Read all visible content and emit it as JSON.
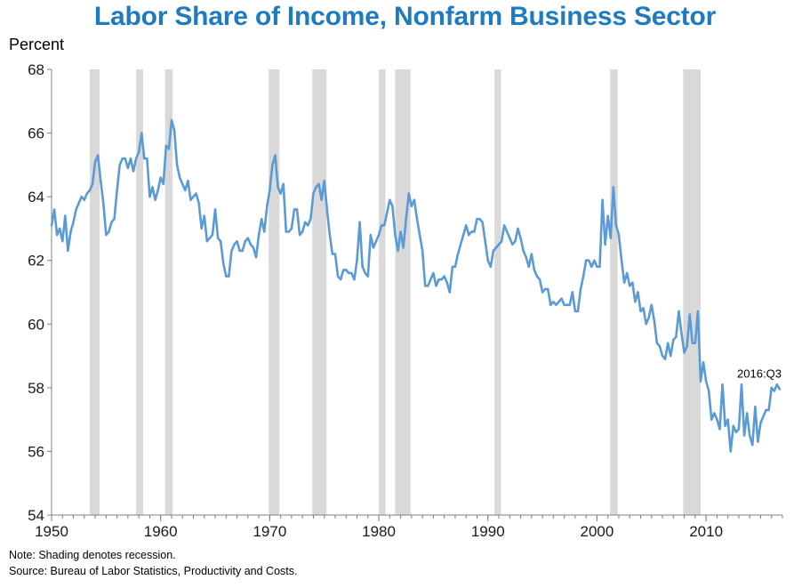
{
  "chart_data": {
    "type": "line",
    "title": "Labor Share of Income, Nonfarm Business Sector",
    "ylabel": "Percent",
    "xlim": [
      1950,
      2017
    ],
    "ylim": [
      54,
      68
    ],
    "yticks": [
      54,
      56,
      58,
      60,
      62,
      64,
      66,
      68
    ],
    "xticks": [
      1950,
      1960,
      1970,
      1980,
      1990,
      2000,
      2010
    ],
    "grid": false,
    "series": [
      {
        "color": "#5b9bd5",
        "end_label": "2016:Q3",
        "points": [
          [
            1950.0,
            63.1
          ],
          [
            1950.25,
            63.6
          ],
          [
            1950.5,
            62.8
          ],
          [
            1950.75,
            63.0
          ],
          [
            1951.0,
            62.6
          ],
          [
            1951.25,
            63.4
          ],
          [
            1951.5,
            62.3
          ],
          [
            1951.75,
            62.9
          ],
          [
            1952.0,
            63.2
          ],
          [
            1952.25,
            63.6
          ],
          [
            1952.5,
            63.8
          ],
          [
            1952.75,
            64.0
          ],
          [
            1953.0,
            63.9
          ],
          [
            1953.25,
            64.1
          ],
          [
            1953.5,
            64.2
          ],
          [
            1953.75,
            64.4
          ],
          [
            1954.0,
            65.1
          ],
          [
            1954.25,
            65.3
          ],
          [
            1954.5,
            64.5
          ],
          [
            1954.75,
            63.8
          ],
          [
            1955.0,
            62.8
          ],
          [
            1955.25,
            62.9
          ],
          [
            1955.5,
            63.2
          ],
          [
            1955.75,
            63.3
          ],
          [
            1956.0,
            64.2
          ],
          [
            1956.25,
            65.0
          ],
          [
            1956.5,
            65.2
          ],
          [
            1956.75,
            65.2
          ],
          [
            1957.0,
            64.9
          ],
          [
            1957.25,
            65.2
          ],
          [
            1957.5,
            64.8
          ],
          [
            1957.75,
            65.2
          ],
          [
            1958.0,
            65.4
          ],
          [
            1958.25,
            66.0
          ],
          [
            1958.5,
            65.2
          ],
          [
            1958.75,
            65.2
          ],
          [
            1959.0,
            64.0
          ],
          [
            1959.25,
            64.3
          ],
          [
            1959.5,
            63.9
          ],
          [
            1959.75,
            64.2
          ],
          [
            1960.0,
            64.6
          ],
          [
            1960.25,
            64.4
          ],
          [
            1960.5,
            65.6
          ],
          [
            1960.75,
            65.5
          ],
          [
            1961.0,
            66.4
          ],
          [
            1961.25,
            66.1
          ],
          [
            1961.5,
            65.0
          ],
          [
            1961.75,
            64.6
          ],
          [
            1962.0,
            64.4
          ],
          [
            1962.25,
            64.2
          ],
          [
            1962.5,
            64.5
          ],
          [
            1962.75,
            63.9
          ],
          [
            1963.0,
            64.0
          ],
          [
            1963.25,
            64.1
          ],
          [
            1963.5,
            63.8
          ],
          [
            1963.75,
            63.0
          ],
          [
            1964.0,
            63.4
          ],
          [
            1964.25,
            62.6
          ],
          [
            1964.5,
            62.7
          ],
          [
            1964.75,
            62.8
          ],
          [
            1965.0,
            63.6
          ],
          [
            1965.25,
            62.7
          ],
          [
            1965.5,
            62.6
          ],
          [
            1965.75,
            61.9
          ],
          [
            1966.0,
            61.5
          ],
          [
            1966.25,
            61.5
          ],
          [
            1966.5,
            62.3
          ],
          [
            1966.75,
            62.5
          ],
          [
            1967.0,
            62.6
          ],
          [
            1967.25,
            62.3
          ],
          [
            1967.5,
            62.3
          ],
          [
            1967.75,
            62.6
          ],
          [
            1968.0,
            62.7
          ],
          [
            1968.25,
            62.5
          ],
          [
            1968.5,
            62.4
          ],
          [
            1968.75,
            62.1
          ],
          [
            1969.0,
            62.8
          ],
          [
            1969.25,
            63.3
          ],
          [
            1969.5,
            62.9
          ],
          [
            1969.75,
            63.7
          ],
          [
            1970.0,
            64.2
          ],
          [
            1970.25,
            65.0
          ],
          [
            1970.5,
            65.3
          ],
          [
            1970.75,
            64.3
          ],
          [
            1971.0,
            64.1
          ],
          [
            1971.25,
            64.4
          ],
          [
            1971.5,
            62.9
          ],
          [
            1971.75,
            62.9
          ],
          [
            1972.0,
            63.0
          ],
          [
            1972.25,
            63.6
          ],
          [
            1972.5,
            63.6
          ],
          [
            1972.75,
            62.8
          ],
          [
            1973.0,
            62.9
          ],
          [
            1973.25,
            63.2
          ],
          [
            1973.5,
            63.1
          ],
          [
            1973.75,
            63.3
          ],
          [
            1974.0,
            64.1
          ],
          [
            1974.25,
            64.3
          ],
          [
            1974.5,
            64.4
          ],
          [
            1974.75,
            63.9
          ],
          [
            1975.0,
            64.5
          ],
          [
            1975.25,
            63.6
          ],
          [
            1975.5,
            62.8
          ],
          [
            1975.75,
            62.2
          ],
          [
            1976.0,
            62.2
          ],
          [
            1976.25,
            61.5
          ],
          [
            1976.5,
            61.4
          ],
          [
            1976.75,
            61.7
          ],
          [
            1977.0,
            61.7
          ],
          [
            1977.25,
            61.6
          ],
          [
            1977.5,
            61.6
          ],
          [
            1977.75,
            61.4
          ],
          [
            1978.0,
            62.0
          ],
          [
            1978.25,
            63.2
          ],
          [
            1978.5,
            61.8
          ],
          [
            1978.75,
            61.6
          ],
          [
            1979.0,
            61.5
          ],
          [
            1979.25,
            62.8
          ],
          [
            1979.5,
            62.4
          ],
          [
            1979.75,
            62.6
          ],
          [
            1980.0,
            62.8
          ],
          [
            1980.25,
            63.1
          ],
          [
            1980.5,
            63.1
          ],
          [
            1980.75,
            63.5
          ],
          [
            1981.0,
            63.9
          ],
          [
            1981.25,
            63.7
          ],
          [
            1981.5,
            62.8
          ],
          [
            1981.75,
            62.3
          ],
          [
            1982.0,
            62.9
          ],
          [
            1982.25,
            62.4
          ],
          [
            1982.5,
            63.3
          ],
          [
            1982.75,
            64.1
          ],
          [
            1983.0,
            63.7
          ],
          [
            1983.25,
            63.9
          ],
          [
            1983.5,
            63.3
          ],
          [
            1983.75,
            62.8
          ],
          [
            1984.0,
            62.3
          ],
          [
            1984.25,
            61.2
          ],
          [
            1984.5,
            61.2
          ],
          [
            1984.75,
            61.4
          ],
          [
            1985.0,
            61.6
          ],
          [
            1985.25,
            61.2
          ],
          [
            1985.5,
            61.4
          ],
          [
            1985.75,
            61.4
          ],
          [
            1986.0,
            61.5
          ],
          [
            1986.25,
            61.3
          ],
          [
            1986.5,
            61.0
          ],
          [
            1986.75,
            61.8
          ],
          [
            1987.0,
            61.8
          ],
          [
            1987.25,
            62.2
          ],
          [
            1987.5,
            62.5
          ],
          [
            1987.75,
            62.8
          ],
          [
            1988.0,
            63.1
          ],
          [
            1988.25,
            62.8
          ],
          [
            1988.5,
            62.9
          ],
          [
            1988.75,
            62.9
          ],
          [
            1989.0,
            63.3
          ],
          [
            1989.25,
            63.3
          ],
          [
            1989.5,
            63.2
          ],
          [
            1989.75,
            62.6
          ],
          [
            1990.0,
            62.0
          ],
          [
            1990.25,
            61.8
          ],
          [
            1990.5,
            62.3
          ],
          [
            1990.75,
            62.4
          ],
          [
            1991.0,
            62.5
          ],
          [
            1991.25,
            62.6
          ],
          [
            1991.5,
            63.1
          ],
          [
            1991.75,
            62.9
          ],
          [
            1992.0,
            62.7
          ],
          [
            1992.25,
            62.5
          ],
          [
            1992.5,
            62.6
          ],
          [
            1992.75,
            63.0
          ],
          [
            1993.0,
            62.7
          ],
          [
            1993.25,
            62.3
          ],
          [
            1993.5,
            62.1
          ],
          [
            1993.75,
            61.8
          ],
          [
            1994.0,
            62.2
          ],
          [
            1994.25,
            61.7
          ],
          [
            1994.5,
            61.5
          ],
          [
            1994.75,
            61.4
          ],
          [
            1995.0,
            61.0
          ],
          [
            1995.25,
            61.1
          ],
          [
            1995.5,
            61.1
          ],
          [
            1995.75,
            60.6
          ],
          [
            1996.0,
            60.7
          ],
          [
            1996.25,
            60.6
          ],
          [
            1996.5,
            60.7
          ],
          [
            1996.75,
            60.8
          ],
          [
            1997.0,
            60.6
          ],
          [
            1997.25,
            60.6
          ],
          [
            1997.5,
            60.6
          ],
          [
            1997.75,
            61.0
          ],
          [
            1998.0,
            60.4
          ],
          [
            1998.25,
            60.4
          ],
          [
            1998.5,
            61.1
          ],
          [
            1998.75,
            61.5
          ],
          [
            1999.0,
            62.0
          ],
          [
            1999.25,
            62.0
          ],
          [
            1999.5,
            61.8
          ],
          [
            1999.75,
            62.0
          ],
          [
            2000.0,
            61.8
          ],
          [
            2000.25,
            61.8
          ],
          [
            2000.5,
            63.9
          ],
          [
            2000.75,
            62.5
          ],
          [
            2001.0,
            63.4
          ],
          [
            2001.25,
            62.7
          ],
          [
            2001.5,
            64.3
          ],
          [
            2001.75,
            63.1
          ],
          [
            2002.0,
            62.8
          ],
          [
            2002.25,
            62.0
          ],
          [
            2002.5,
            61.3
          ],
          [
            2002.75,
            61.6
          ],
          [
            2003.0,
            61.2
          ],
          [
            2003.25,
            61.3
          ],
          [
            2003.5,
            60.7
          ],
          [
            2003.75,
            61.0
          ],
          [
            2004.0,
            60.4
          ],
          [
            2004.25,
            60.5
          ],
          [
            2004.5,
            60.0
          ],
          [
            2004.75,
            60.2
          ],
          [
            2005.0,
            60.6
          ],
          [
            2005.25,
            60.1
          ],
          [
            2005.5,
            59.4
          ],
          [
            2005.75,
            59.3
          ],
          [
            2006.0,
            59.0
          ],
          [
            2006.25,
            58.9
          ],
          [
            2006.5,
            59.4
          ],
          [
            2006.75,
            59.0
          ],
          [
            2007.0,
            59.5
          ],
          [
            2007.25,
            59.6
          ],
          [
            2007.5,
            60.4
          ],
          [
            2007.75,
            59.7
          ],
          [
            2008.0,
            59.1
          ],
          [
            2008.25,
            59.3
          ],
          [
            2008.5,
            60.3
          ],
          [
            2008.75,
            59.4
          ],
          [
            2009.0,
            59.4
          ],
          [
            2009.25,
            60.4
          ],
          [
            2009.5,
            58.2
          ],
          [
            2009.75,
            58.8
          ],
          [
            2010.0,
            58.2
          ],
          [
            2010.25,
            57.9
          ],
          [
            2010.5,
            57.0
          ],
          [
            2010.75,
            57.2
          ],
          [
            2011.0,
            57.0
          ],
          [
            2011.25,
            56.7
          ],
          [
            2011.5,
            58.1
          ],
          [
            2011.75,
            56.8
          ],
          [
            2012.0,
            57.0
          ],
          [
            2012.25,
            56.0
          ],
          [
            2012.5,
            56.8
          ],
          [
            2012.75,
            56.6
          ],
          [
            2013.0,
            56.7
          ],
          [
            2013.25,
            58.1
          ],
          [
            2013.5,
            56.5
          ],
          [
            2013.75,
            57.2
          ],
          [
            2014.0,
            56.5
          ],
          [
            2014.25,
            56.2
          ],
          [
            2014.5,
            57.4
          ],
          [
            2014.75,
            56.3
          ],
          [
            2015.0,
            56.9
          ],
          [
            2015.25,
            57.1
          ],
          [
            2015.5,
            57.3
          ],
          [
            2015.75,
            57.3
          ],
          [
            2016.0,
            58.0
          ],
          [
            2016.25,
            57.9
          ],
          [
            2016.5,
            58.1
          ],
          [
            2016.75,
            57.95
          ]
        ]
      }
    ],
    "recessions": [
      [
        1953.5,
        1954.4
      ],
      [
        1957.75,
        1958.4
      ],
      [
        1960.4,
        1961.1
      ],
      [
        1969.9,
        1970.9
      ],
      [
        1973.9,
        1975.2
      ],
      [
        1980.0,
        1980.6
      ],
      [
        1981.5,
        1982.9
      ],
      [
        1990.6,
        1991.2
      ],
      [
        2001.2,
        2001.9
      ],
      [
        2007.9,
        2009.5
      ]
    ],
    "recession_color": "#d9d9d9"
  },
  "notes": {
    "note": "Note: Shading denotes recession.",
    "source": "Source: Bureau of Labor Statistics, Productivity and Costs."
  }
}
